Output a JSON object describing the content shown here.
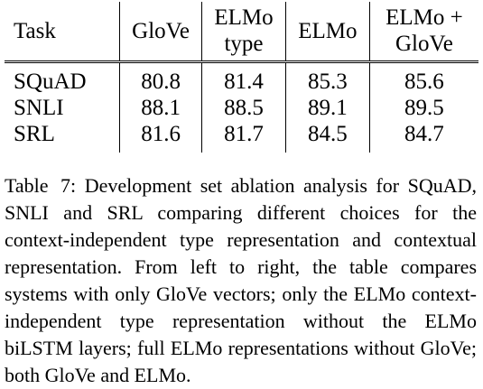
{
  "table": {
    "headers": [
      {
        "key": "task",
        "lines": [
          "Task"
        ]
      },
      {
        "key": "glove",
        "lines": [
          "GloVe"
        ]
      },
      {
        "key": "elmo_type",
        "lines": [
          "ELMo",
          "type"
        ]
      },
      {
        "key": "elmo",
        "lines": [
          "ELMo"
        ]
      },
      {
        "key": "elmo_glove",
        "lines": [
          "ELMo +",
          "GloVe"
        ]
      }
    ],
    "rows": [
      {
        "task": "SQuAD",
        "glove": "80.8",
        "elmo_type": "81.4",
        "elmo": "85.3",
        "elmo_glove": "85.6"
      },
      {
        "task": "SNLI",
        "glove": "88.1",
        "elmo_type": "88.5",
        "elmo": "89.1",
        "elmo_glove": "89.5"
      },
      {
        "task": "SRL",
        "glove": "81.6",
        "elmo_type": "81.7",
        "elmo": "84.5",
        "elmo_glove": "84.7"
      }
    ]
  },
  "caption": {
    "label": "Table 7:",
    "text": "Development set ablation analysis for SQuAD, SNLI and SRL comparing different choices for the context-independent type representation and contextual representation. From left to right, the table compares systems with only GloVe vectors; only the ELMo context-independent type representation without the ELMo biLSTM layers; full ELMo representations without GloVe; both GloVe and ELMo."
  }
}
